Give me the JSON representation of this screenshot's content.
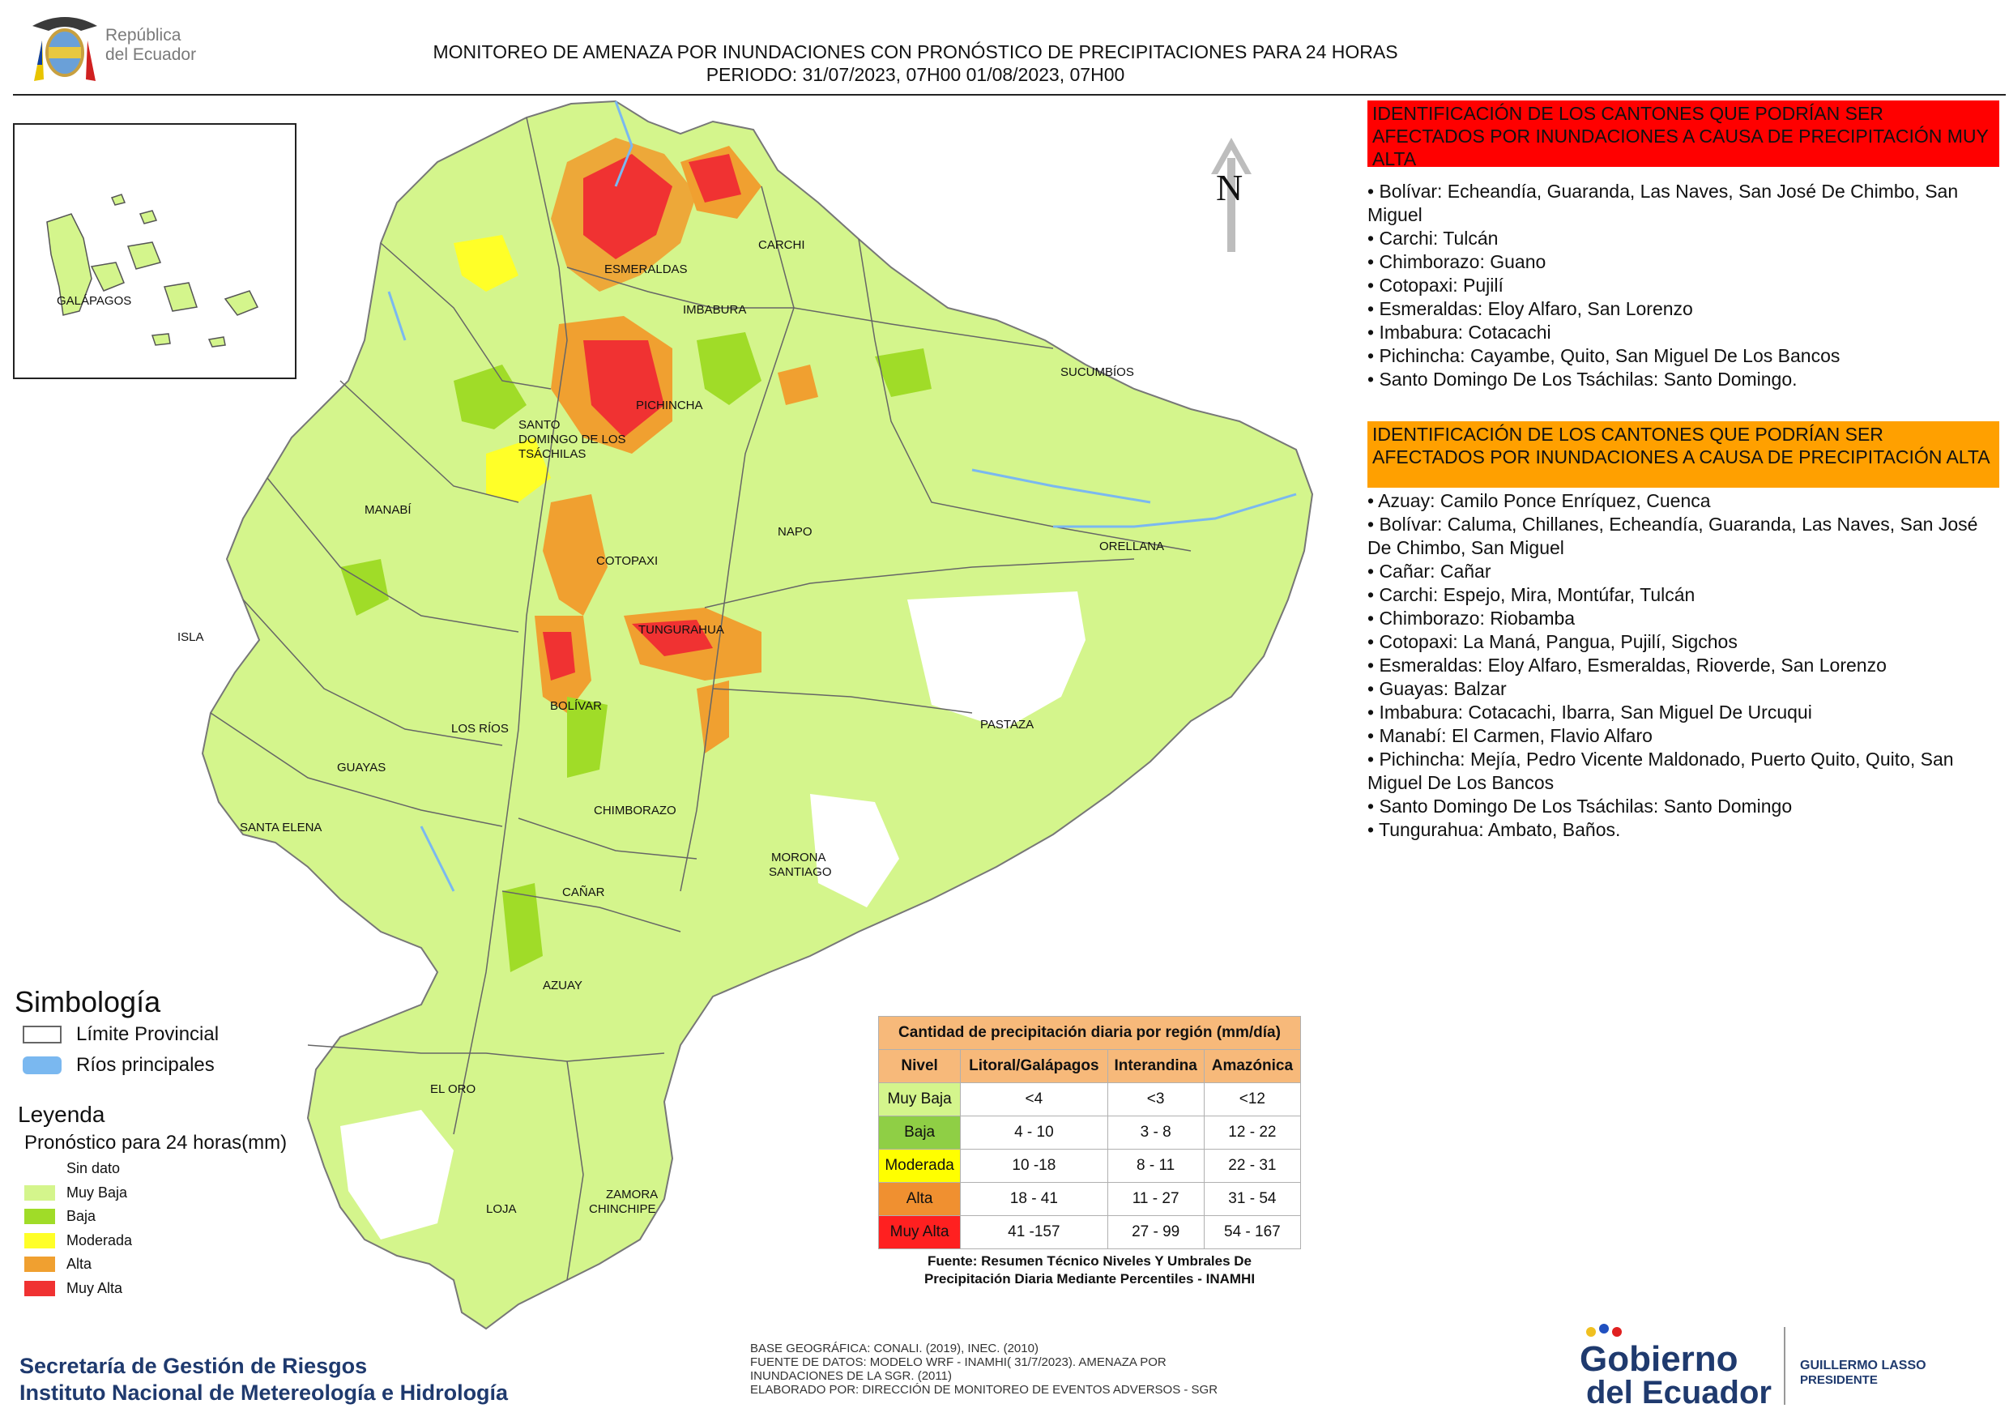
{
  "header": {
    "logo_text_line1": "República",
    "logo_text_line2": "del Ecuador",
    "title_line1": "MONITOREO DE AMENAZA POR INUNDACIONES  CON PRONÓSTICO DE  PRECIPITACIONES PARA 24 HORAS",
    "title_line2": "PERIODO: 31/07/2023, 07H00 01/08/2023, 07H00"
  },
  "north_label": "N",
  "map_labels": {
    "galapagos": "GALÁPAGOS",
    "carchi": "CARCHI",
    "esmeraldas": "ESMERALDAS",
    "imbabura": "IMBABURA",
    "sucumbios": "SUCUMBÍOS",
    "pichincha": "PICHINCHA",
    "santo_domingo_1": "SANTO",
    "santo_domingo_2": "DOMINGO DE LOS",
    "santo_domingo_3": "TSÁCHILAS",
    "manabi": "MANABÍ",
    "napo": "NAPO",
    "orellana": "ORELLANA",
    "cotopaxi": "COTOPAXI",
    "isla": "ISLA",
    "tungurahua": "TUNGURAHUA",
    "bolivar": "BOLÍVAR",
    "los_rios": "LOS RÍOS",
    "pastaza": "PASTAZA",
    "guayas": "GUAYAS",
    "santa_elena": "SANTA ELENA",
    "chimborazo": "CHIMBORAZO",
    "morona_1": "MORONA",
    "morona_2": "SANTIAGO",
    "canar": "CAÑAR",
    "azuay": "AZUAY",
    "el_oro": "EL ORO",
    "loja": "LOJA",
    "zamora_1": "ZAMORA",
    "zamora_2": "CHINCHIPE"
  },
  "panel_muy_alta": {
    "header": "IDENTIFICACIÓN DE LOS CANTONES QUE PODRÍAN SER AFECTADOS POR INUNDACIONES  A CAUSA DE PRECIPITACIÓN MUY ALTA",
    "items": [
      "• Bolívar: Echeandía, Guaranda, Las Naves, San José De Chimbo, San Miguel",
      "• Carchi: Tulcán",
      "• Chimborazo: Guano",
      "• Cotopaxi: Pujilí",
      "• Esmeraldas: Eloy Alfaro, San Lorenzo",
      "• Imbabura: Cotacachi",
      "• Pichincha: Cayambe, Quito, San Miguel De Los Bancos",
      "• Santo Domingo De Los Tsáchilas: Santo Domingo."
    ]
  },
  "panel_alta": {
    "header": "IDENTIFICACIÓN DE LOS CANTONES QUE  PODRÍAN SER AFECTADOS POR INUNDACIONES  A CAUSA DE PRECIPITACIÓN ALTA",
    "items": [
      "• Azuay: Camilo Ponce Enríquez, Cuenca",
      "• Bolívar: Caluma, Chillanes, Echeandía, Guaranda, Las Naves, San José De Chimbo, San Miguel",
      "• Cañar: Cañar",
      "• Carchi: Espejo, Mira, Montúfar, Tulcán",
      "• Chimborazo: Riobamba",
      "• Cotopaxi: La Maná, Pangua, Pujilí, Sigchos",
      "• Esmeraldas: Eloy Alfaro, Esmeraldas, Rioverde, San Lorenzo",
      "• Guayas: Balzar",
      "• Imbabura: Cotacachi, Ibarra, San Miguel De Urcuqui",
      "• Manabí: El Carmen, Flavio Alfaro",
      "• Pichincha: Mejía, Pedro Vicente Maldonado, Puerto Quito, Quito, San Miguel De Los Bancos",
      "• Santo Domingo De Los Tsáchilas: Santo Domingo",
      "• Tungurahua: Ambato, Baños."
    ]
  },
  "simbologia": {
    "title": "Simbología",
    "limite": "Límite Provincial",
    "rios": "Ríos principales"
  },
  "leyenda": {
    "title": "Leyenda",
    "subtitle": "Pronóstico para 24 horas(mm)",
    "items": [
      {
        "label": "Sin dato",
        "color": "#ffffff"
      },
      {
        "label": "Muy Baja",
        "color": "#d4f58c"
      },
      {
        "label": "Baja",
        "color": "#a0dc28"
      },
      {
        "label": "Moderada",
        "color": "#ffff28"
      },
      {
        "label": "Alta",
        "color": "#f0a030"
      },
      {
        "label": "Muy Alta",
        "color": "#f03232"
      }
    ]
  },
  "table": {
    "caption": "Cantidad de precipitación diaria por región (mm/día)",
    "headers": [
      "Nivel",
      "Litoral/Galápagos",
      "Interandina",
      "Amazónica"
    ],
    "rows": [
      {
        "nivel": "Muy Baja",
        "color": "#d4f58c",
        "litoral": "<4",
        "interandina": "<3",
        "amazonica": "<12"
      },
      {
        "nivel": "Baja",
        "color": "#8fcf45",
        "litoral": "4 - 10",
        "interandina": "3 - 8",
        "amazonica": "12 - 22"
      },
      {
        "nivel": "Moderada",
        "color": "#ffff00",
        "litoral": "10 -18",
        "interandina": "8 - 11",
        "amazonica": "22 - 31"
      },
      {
        "nivel": "Alta",
        "color": "#f09030",
        "litoral": "18 - 41",
        "interandina": "11 - 27",
        "amazonica": "31 - 54"
      },
      {
        "nivel": "Muy Alta",
        "color": "#ff2020",
        "litoral": "41 -157",
        "interandina": "27 - 99",
        "amazonica": "54 - 167"
      }
    ],
    "fuente_line1": "Fuente: Resumen Técnico Niveles Y Umbrales De",
    "fuente_line2": "Precipitación Diaria Mediante Percentiles - INAMHI"
  },
  "footer": {
    "org_line1": "Secretaría de Gestión de Riesgos",
    "org_line2": "Instituto Nacional de Metereología e Hidrología",
    "meta_line1": "BASE GEOGRÁFICA: CONALI. (2019), INEC. (2010)",
    "meta_line2": "FUENTE DE DATOS: MODELO WRF - INAMHI( 31/7/2023).  AMENAZA POR",
    "meta_line3": "INUNDACIONES DE LA SGR. (2011)",
    "meta_line4": "ELABORADO POR: DIRECCIÓN DE MONITOREO DE EVENTOS ADVERSOS - SGR",
    "gob_line1": "Gobierno",
    "gob_line2": "del Ecuador",
    "pres_line1": "GUILLERMO LASSO",
    "pres_line2": "PRESIDENTE"
  }
}
